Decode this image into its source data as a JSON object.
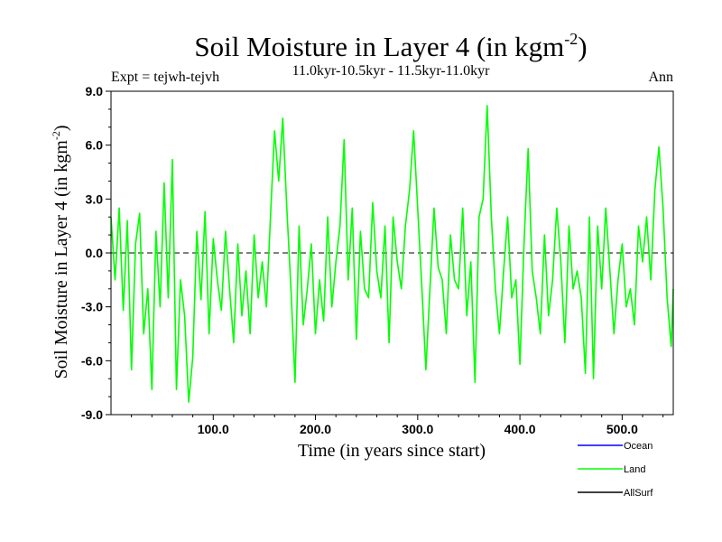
{
  "chart_data": {
    "type": "line",
    "title": "Soil Moisture in Layer 4 (in kgm",
    "title_sup": "-2",
    "title_close": ")",
    "subtitle": "11.0kyr-10.5kyr - 11.5kyr-11.0kyr",
    "left_label": "Expt = tejwh-tejvh",
    "right_label": "Ann",
    "xlabel": "Time (in years since start)",
    "ylabel": "Soil Moisture in Layer 4 (in kgm",
    "ylabel_sup": "-2",
    "ylabel_close": ")",
    "xlim": [
      0,
      550
    ],
    "ylim": [
      -9.0,
      9.0
    ],
    "xticks": [
      100,
      200,
      300,
      400,
      500
    ],
    "xtick_labels": [
      "100.0",
      "200.0",
      "300.0",
      "400.0",
      "500.0"
    ],
    "yticks": [
      -9,
      -6,
      -3,
      0,
      3,
      6,
      9
    ],
    "ytick_labels": [
      "-9.0",
      "-6.0",
      "-3.0",
      "0.0",
      "3.0",
      "6.0",
      "9.0"
    ],
    "zero_line": true,
    "legend_position": "bottom-right",
    "series": [
      {
        "name": "Ocean",
        "color": "#0000ff",
        "x": [],
        "values": []
      },
      {
        "name": "Land",
        "color": "#00ff00",
        "x": [
          0,
          4,
          8,
          12,
          16,
          20,
          24,
          28,
          32,
          36,
          40,
          44,
          48,
          52,
          56,
          60,
          64,
          68,
          72,
          76,
          80,
          84,
          88,
          92,
          96,
          100,
          104,
          108,
          112,
          116,
          120,
          124,
          128,
          132,
          136,
          140,
          144,
          148,
          152,
          156,
          160,
          164,
          168,
          172,
          176,
          180,
          184,
          188,
          192,
          196,
          200,
          204,
          208,
          212,
          216,
          220,
          224,
          228,
          232,
          236,
          240,
          244,
          248,
          252,
          256,
          260,
          264,
          268,
          272,
          276,
          280,
          284,
          288,
          292,
          296,
          300,
          304,
          308,
          312,
          316,
          320,
          324,
          328,
          332,
          336,
          340,
          344,
          348,
          352,
          356,
          360,
          364,
          368,
          372,
          376,
          380,
          384,
          388,
          392,
          396,
          400,
          404,
          408,
          412,
          416,
          420,
          424,
          428,
          432,
          436,
          440,
          444,
          448,
          452,
          456,
          460,
          464,
          468,
          472,
          476,
          480,
          484,
          488,
          492,
          496,
          500,
          504,
          508,
          512,
          516,
          520,
          524,
          528,
          532,
          536,
          540,
          544,
          548,
          550
        ],
        "values": [
          2.0,
          -1.5,
          2.5,
          -3.2,
          1.8,
          -6.5,
          0.5,
          2.2,
          -4.5,
          -2.0,
          -7.6,
          1.2,
          -3.0,
          3.9,
          -2.5,
          5.2,
          -7.6,
          -1.5,
          -3.5,
          -8.3,
          -5.8,
          1.2,
          -2.6,
          2.3,
          -4.5,
          0.8,
          -1.5,
          -3.2,
          1.2,
          -2.0,
          -5.0,
          0.5,
          -3.5,
          -1.0,
          -4.5,
          1.0,
          -2.5,
          -0.5,
          -3.0,
          2.0,
          6.8,
          4.0,
          7.5,
          2.5,
          -2.0,
          -7.2,
          1.5,
          -4.0,
          -2.0,
          0.5,
          -4.5,
          -1.5,
          -3.8,
          2.0,
          -3.0,
          -0.5,
          1.5,
          6.3,
          -1.5,
          2.5,
          -4.8,
          1.2,
          -2.0,
          -2.5,
          2.8,
          -1.0,
          -2.5,
          1.5,
          -5.0,
          2.0,
          -0.5,
          -2.0,
          1.5,
          3.5,
          6.8,
          2.5,
          -1.8,
          -6.5,
          -2.0,
          2.5,
          -0.8,
          -1.5,
          -4.5,
          1.0,
          -1.5,
          -2.0,
          2.5,
          -3.5,
          -0.5,
          -7.2,
          2.0,
          3.0,
          8.2,
          2.0,
          -2.0,
          -4.5,
          -1.0,
          2.0,
          -2.5,
          -1.5,
          -6.2,
          0.5,
          5.8,
          -1.0,
          -2.5,
          -4.5,
          1.0,
          -3.5,
          -1.5,
          2.5,
          -0.5,
          -5.0,
          1.5,
          -2.0,
          -1.0,
          -2.5,
          -6.7,
          2.0,
          -7.0,
          1.5,
          -2.0,
          2.5,
          -1.0,
          -4.5,
          -1.5,
          0.5,
          -3.0,
          -2.0,
          -4.0,
          1.5,
          -0.5,
          2.0,
          -1.5,
          3.5,
          5.9,
          2.5,
          -2.5,
          -5.2,
          -2.0
        ]
      },
      {
        "name": "AllSurf",
        "color": "#000000",
        "x": [],
        "values": []
      }
    ]
  }
}
